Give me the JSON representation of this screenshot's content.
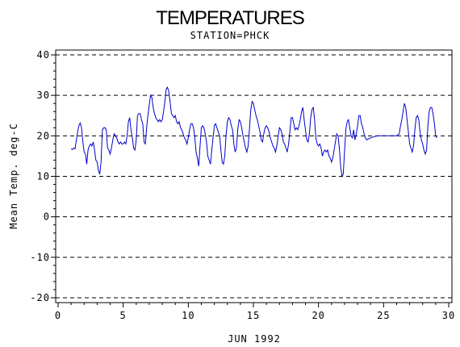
{
  "chart_data": {
    "type": "line",
    "title": "TEMPERATURES",
    "subtitle": "STATION=PHCK",
    "xlabel": "JUN 1992",
    "ylabel": "Mean Temp. deg-C",
    "xlim": [
      0,
      30
    ],
    "ylim": [
      -20,
      40
    ],
    "xticks": [
      0,
      5,
      10,
      15,
      20,
      25,
      30
    ],
    "yticks": [
      -20,
      -10,
      0,
      10,
      20,
      30,
      40
    ],
    "grid": "horizontal dashed",
    "colors": {
      "line": "#0000cc",
      "axis": "#000000",
      "grid": "#000000"
    },
    "series": [
      {
        "values": [
          [
            1.0,
            16.8
          ],
          [
            1.1,
            16.6
          ],
          [
            1.2,
            17.0
          ],
          [
            1.3,
            16.8
          ],
          [
            1.4,
            19.0
          ],
          [
            1.5,
            21.0
          ],
          [
            1.6,
            22.5
          ],
          [
            1.7,
            23.2
          ],
          [
            1.8,
            22.0
          ],
          [
            1.9,
            18.5
          ],
          [
            2.0,
            16.0
          ],
          [
            2.1,
            15.5
          ],
          [
            2.2,
            13.0
          ],
          [
            2.3,
            16.5
          ],
          [
            2.4,
            17.5
          ],
          [
            2.5,
            18.0
          ],
          [
            2.6,
            17.5
          ],
          [
            2.7,
            18.5
          ],
          [
            2.8,
            16.5
          ],
          [
            2.9,
            14.0
          ],
          [
            3.0,
            13.5
          ],
          [
            3.1,
            11.5
          ],
          [
            3.2,
            10.5
          ],
          [
            3.3,
            13.5
          ],
          [
            3.4,
            21.5
          ],
          [
            3.5,
            22.0
          ],
          [
            3.6,
            22.0
          ],
          [
            3.7,
            21.5
          ],
          [
            3.8,
            17.0
          ],
          [
            3.9,
            16.5
          ],
          [
            4.0,
            15.5
          ],
          [
            4.1,
            17.0
          ],
          [
            4.2,
            19.0
          ],
          [
            4.3,
            20.5
          ],
          [
            4.4,
            20.0
          ],
          [
            4.5,
            19.5
          ],
          [
            4.6,
            18.5
          ],
          [
            4.7,
            18.0
          ],
          [
            4.8,
            18.5
          ],
          [
            4.9,
            18.0
          ],
          [
            5.0,
            18.0
          ],
          [
            5.1,
            18.5
          ],
          [
            5.2,
            18.0
          ],
          [
            5.3,
            20.0
          ],
          [
            5.4,
            23.5
          ],
          [
            5.5,
            24.5
          ],
          [
            5.6,
            21.5
          ],
          [
            5.7,
            19.5
          ],
          [
            5.8,
            17.0
          ],
          [
            5.9,
            16.5
          ],
          [
            6.0,
            19.0
          ],
          [
            6.1,
            25.0
          ],
          [
            6.2,
            25.5
          ],
          [
            6.3,
            25.5
          ],
          [
            6.4,
            24.0
          ],
          [
            6.5,
            23.0
          ],
          [
            6.6,
            18.5
          ],
          [
            6.7,
            18.0
          ],
          [
            6.8,
            22.0
          ],
          [
            6.9,
            25.0
          ],
          [
            7.0,
            27.5
          ],
          [
            7.1,
            30.0
          ],
          [
            7.2,
            29.5
          ],
          [
            7.3,
            27.0
          ],
          [
            7.4,
            25.5
          ],
          [
            7.5,
            24.5
          ],
          [
            7.6,
            24.0
          ],
          [
            7.7,
            23.5
          ],
          [
            7.8,
            24.0
          ],
          [
            7.9,
            23.5
          ],
          [
            8.0,
            24.0
          ],
          [
            8.1,
            26.0
          ],
          [
            8.2,
            28.5
          ],
          [
            8.3,
            31.5
          ],
          [
            8.4,
            32.0
          ],
          [
            8.5,
            31.0
          ],
          [
            8.6,
            28.5
          ],
          [
            8.7,
            25.5
          ],
          [
            8.8,
            25.0
          ],
          [
            8.9,
            24.5
          ],
          [
            9.0,
            25.0
          ],
          [
            9.1,
            23.5
          ],
          [
            9.2,
            23.0
          ],
          [
            9.3,
            23.5
          ],
          [
            9.4,
            22.0
          ],
          [
            9.5,
            21.5
          ],
          [
            9.6,
            20.5
          ],
          [
            9.7,
            19.5
          ],
          [
            9.8,
            19.0
          ],
          [
            9.9,
            18.0
          ],
          [
            10.0,
            19.5
          ],
          [
            10.1,
            21.5
          ],
          [
            10.2,
            23.0
          ],
          [
            10.3,
            23.0
          ],
          [
            10.4,
            22.0
          ],
          [
            10.5,
            19.5
          ],
          [
            10.6,
            16.0
          ],
          [
            10.7,
            14.5
          ],
          [
            10.8,
            12.5
          ],
          [
            10.9,
            17.5
          ],
          [
            11.0,
            22.0
          ],
          [
            11.1,
            22.5
          ],
          [
            11.2,
            22.0
          ],
          [
            11.3,
            20.5
          ],
          [
            11.4,
            18.5
          ],
          [
            11.5,
            15.0
          ],
          [
            11.6,
            14.0
          ],
          [
            11.7,
            13.0
          ],
          [
            11.8,
            16.5
          ],
          [
            11.9,
            19.5
          ],
          [
            12.0,
            22.5
          ],
          [
            12.1,
            23.0
          ],
          [
            12.2,
            22.0
          ],
          [
            12.3,
            21.0
          ],
          [
            12.4,
            20.0
          ],
          [
            12.5,
            16.5
          ],
          [
            12.6,
            13.5
          ],
          [
            12.7,
            13.0
          ],
          [
            12.8,
            15.0
          ],
          [
            12.9,
            20.0
          ],
          [
            13.0,
            23.5
          ],
          [
            13.1,
            24.5
          ],
          [
            13.2,
            24.0
          ],
          [
            13.3,
            22.5
          ],
          [
            13.4,
            21.5
          ],
          [
            13.5,
            18.0
          ],
          [
            13.6,
            16.0
          ],
          [
            13.7,
            17.0
          ],
          [
            13.8,
            21.5
          ],
          [
            13.9,
            24.0
          ],
          [
            14.0,
            23.5
          ],
          [
            14.1,
            22.0
          ],
          [
            14.2,
            20.0
          ],
          [
            14.3,
            18.5
          ],
          [
            14.4,
            17.0
          ],
          [
            14.5,
            16.0
          ],
          [
            14.6,
            17.5
          ],
          [
            14.7,
            22.0
          ],
          [
            14.8,
            26.5
          ],
          [
            14.9,
            28.5
          ],
          [
            15.0,
            28.0
          ],
          [
            15.1,
            26.5
          ],
          [
            15.2,
            25.0
          ],
          [
            15.3,
            24.0
          ],
          [
            15.4,
            22.5
          ],
          [
            15.5,
            21.0
          ],
          [
            15.6,
            19.0
          ],
          [
            15.7,
            18.5
          ],
          [
            15.8,
            20.5
          ],
          [
            15.9,
            22.0
          ],
          [
            16.0,
            22.5
          ],
          [
            16.1,
            22.0
          ],
          [
            16.2,
            21.0
          ],
          [
            16.3,
            19.5
          ],
          [
            16.4,
            18.5
          ],
          [
            16.5,
            17.5
          ],
          [
            16.6,
            17.0
          ],
          [
            16.7,
            16.0
          ],
          [
            16.8,
            17.5
          ],
          [
            16.9,
            20.0
          ],
          [
            17.0,
            22.0
          ],
          [
            17.1,
            21.5
          ],
          [
            17.2,
            20.5
          ],
          [
            17.3,
            18.5
          ],
          [
            17.4,
            18.0
          ],
          [
            17.5,
            17.0
          ],
          [
            17.6,
            16.0
          ],
          [
            17.7,
            18.0
          ],
          [
            17.8,
            21.0
          ],
          [
            17.9,
            24.5
          ],
          [
            18.0,
            24.5
          ],
          [
            18.1,
            23.0
          ],
          [
            18.2,
            21.5
          ],
          [
            18.3,
            22.0
          ],
          [
            18.4,
            21.5
          ],
          [
            18.5,
            22.5
          ],
          [
            18.6,
            24.0
          ],
          [
            18.7,
            26.0
          ],
          [
            18.8,
            27.0
          ],
          [
            18.9,
            24.0
          ],
          [
            19.0,
            21.5
          ],
          [
            19.1,
            19.0
          ],
          [
            19.2,
            18.5
          ],
          [
            19.3,
            20.5
          ],
          [
            19.4,
            24.5
          ],
          [
            19.5,
            26.5
          ],
          [
            19.6,
            27.0
          ],
          [
            19.7,
            24.0
          ],
          [
            19.8,
            19.5
          ],
          [
            19.9,
            18.0
          ],
          [
            20.0,
            17.5
          ],
          [
            20.1,
            18.0
          ],
          [
            20.2,
            17.0
          ],
          [
            20.3,
            15.0
          ],
          [
            20.4,
            16.0
          ],
          [
            20.5,
            16.5
          ],
          [
            20.6,
            16.0
          ],
          [
            20.7,
            16.5
          ],
          [
            20.8,
            15.0
          ],
          [
            20.9,
            14.5
          ],
          [
            21.0,
            13.5
          ],
          [
            21.1,
            14.5
          ],
          [
            21.2,
            16.5
          ],
          [
            21.3,
            18.5
          ],
          [
            21.4,
            20.5
          ],
          [
            21.5,
            20.0
          ],
          [
            21.6,
            17.0
          ],
          [
            21.7,
            12.5
          ],
          [
            21.8,
            10.0
          ],
          [
            21.9,
            10.5
          ],
          [
            22.0,
            16.0
          ],
          [
            22.1,
            21.5
          ],
          [
            22.2,
            23.5
          ],
          [
            22.3,
            24.0
          ],
          [
            22.4,
            22.0
          ],
          [
            22.5,
            20.0
          ],
          [
            22.6,
            19.5
          ],
          [
            22.7,
            21.5
          ],
          [
            22.8,
            19.0
          ],
          [
            22.9,
            20.5
          ],
          [
            23.0,
            22.5
          ],
          [
            23.1,
            25.0
          ],
          [
            23.2,
            25.0
          ],
          [
            23.3,
            23.0
          ],
          [
            23.4,
            22.0
          ],
          [
            23.5,
            20.5
          ],
          [
            23.6,
            19.5
          ],
          [
            23.7,
            19.0
          ],
          [
            24.0,
            19.5
          ],
          [
            24.5,
            20.0
          ],
          [
            25.0,
            20.0
          ],
          [
            25.5,
            20.0
          ],
          [
            26.0,
            20.0
          ],
          [
            26.2,
            20.5
          ],
          [
            26.3,
            22.5
          ],
          [
            26.4,
            24.0
          ],
          [
            26.5,
            26.0
          ],
          [
            26.6,
            28.0
          ],
          [
            26.7,
            27.0
          ],
          [
            26.8,
            24.0
          ],
          [
            26.9,
            21.0
          ],
          [
            27.0,
            18.0
          ],
          [
            27.1,
            17.0
          ],
          [
            27.2,
            16.0
          ],
          [
            27.3,
            17.5
          ],
          [
            27.4,
            21.5
          ],
          [
            27.5,
            24.5
          ],
          [
            27.6,
            25.0
          ],
          [
            27.7,
            24.0
          ],
          [
            27.8,
            21.0
          ],
          [
            27.9,
            19.0
          ],
          [
            28.0,
            18.0
          ],
          [
            28.1,
            16.5
          ],
          [
            28.2,
            15.5
          ],
          [
            28.3,
            16.5
          ],
          [
            28.4,
            22.5
          ],
          [
            28.5,
            26.0
          ],
          [
            28.6,
            27.0
          ],
          [
            28.7,
            27.0
          ],
          [
            28.8,
            25.5
          ],
          [
            28.9,
            23.0
          ],
          [
            29.0,
            20.0
          ],
          [
            29.1,
            19.5
          ]
        ]
      }
    ]
  }
}
